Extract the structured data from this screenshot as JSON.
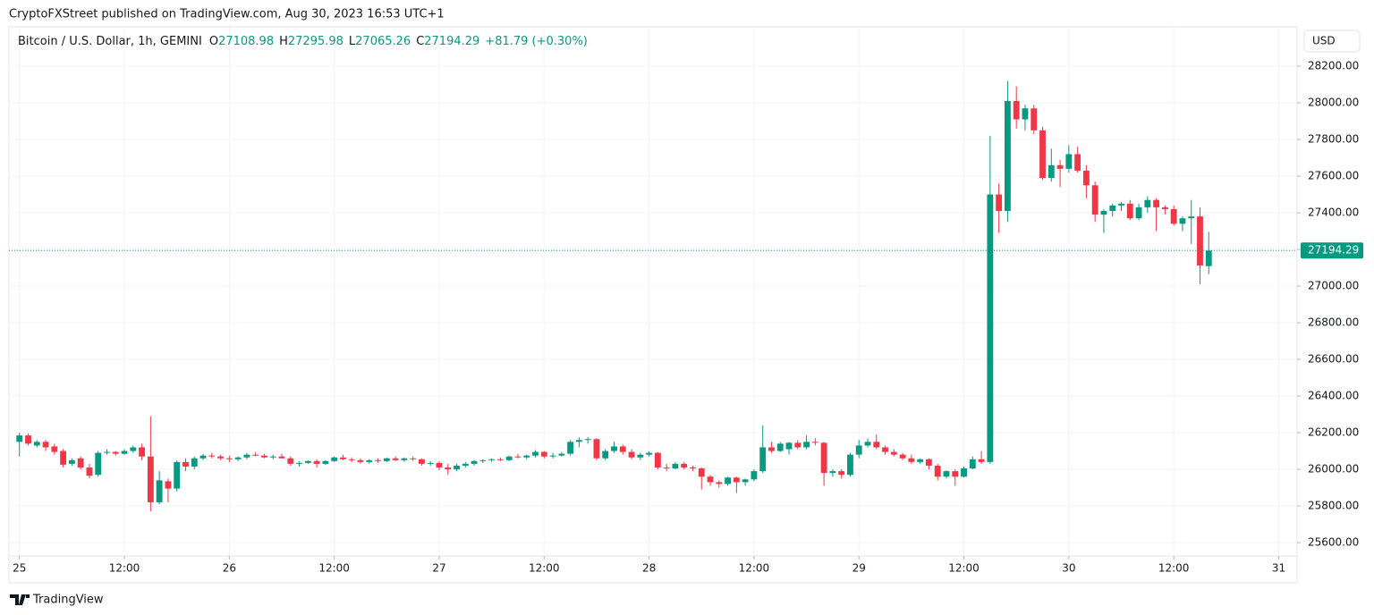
{
  "chart_data": {
    "type": "candlestick",
    "header": "CryptoFXStreet published on TradingView.com, Aug 30, 2023 16:53 UTC+1",
    "title": "Bitcoin / U.S. Dollar, 1h, GEMINI",
    "ohlc_labels": [
      "O",
      "H",
      "L",
      "C"
    ],
    "change": "+81.79 (+0.30%)",
    "currency": "USD",
    "brand": "TradingView",
    "up_color": "#089981",
    "down_color": "#f23645",
    "grid": true,
    "x": [
      0,
      1,
      2,
      3,
      4,
      5,
      6,
      7,
      8,
      9,
      10,
      11,
      12,
      13,
      14,
      15,
      16,
      17,
      18,
      19,
      20,
      21,
      22,
      23,
      24,
      25,
      26,
      27,
      28,
      29,
      30,
      31,
      32,
      33,
      34,
      35,
      36,
      37,
      38,
      39,
      40,
      41,
      42,
      43,
      44,
      45,
      46,
      47,
      48,
      49,
      50,
      51,
      52,
      53,
      54,
      55,
      56,
      57,
      58,
      59,
      60,
      61,
      62,
      63,
      64,
      65,
      66,
      67,
      68,
      69,
      70,
      71,
      72,
      73,
      74,
      75,
      76,
      77,
      78,
      79,
      80,
      81,
      82,
      83,
      84,
      85,
      86,
      87,
      88,
      89,
      90,
      91,
      92,
      93,
      94,
      95,
      96,
      97,
      98,
      99,
      100,
      101,
      102,
      103,
      104,
      105,
      106,
      107,
      108,
      109,
      110,
      111,
      112,
      113,
      114,
      115,
      116,
      117,
      118,
      119,
      120,
      121,
      122,
      123,
      124,
      125,
      126,
      127,
      128,
      129,
      130,
      131,
      132,
      133,
      134,
      135,
      136
    ],
    "open": [
      26150,
      26185,
      26130,
      26150,
      26125,
      26100,
      26030,
      26060,
      26010,
      25970,
      26090,
      26095,
      26085,
      26100,
      26120,
      26070,
      25820,
      25935,
      25895,
      26040,
      26015,
      26060,
      26075,
      26070,
      26060,
      26055,
      26065,
      26080,
      26075,
      26065,
      26070,
      26060,
      26030,
      26035,
      26045,
      26030,
      26045,
      26065,
      26055,
      26050,
      26040,
      26050,
      26045,
      26060,
      26050,
      26060,
      26055,
      26030,
      26035,
      26010,
      26000,
      26020,
      26030,
      26045,
      26050,
      26055,
      26050,
      26070,
      26065,
      26075,
      26095,
      26070,
      26075,
      26085,
      26150,
      26160,
      26165,
      26060,
      26100,
      26125,
      26095,
      26065,
      26080,
      26090,
      26010,
      26005,
      26030,
      26010,
      26005,
      25960,
      25930,
      25920,
      25955,
      25930,
      25945,
      25990,
      26120,
      26100,
      26110,
      26145,
      26120,
      26150,
      26145,
      25980,
      25990,
      25970,
      26080,
      26130,
      26150,
      26120,
      26095,
      26080,
      26060,
      26040,
      26055,
      26020,
      25960,
      25990,
      25960,
      26005,
      26055,
      26040,
      27500,
      27410,
      28010,
      27910,
      27970,
      27850,
      27590,
      27660,
      27640,
      27720,
      27630,
      27550,
      27390,
      27410,
      27440,
      27450,
      27370,
      27430,
      27470,
      27430,
      27420,
      27340,
      27370,
      27380,
      27108.98
    ],
    "high": [
      26200,
      26195,
      26160,
      26160,
      26140,
      26110,
      26060,
      26070,
      26030,
      26100,
      26110,
      26100,
      26110,
      26130,
      26140,
      26290,
      25990,
      25950,
      26050,
      26060,
      26070,
      26085,
      26090,
      26080,
      26075,
      26070,
      26090,
      26095,
      26085,
      26080,
      26085,
      26070,
      26045,
      26050,
      26055,
      26050,
      26070,
      26080,
      26065,
      26060,
      26055,
      26060,
      26065,
      26070,
      26065,
      26070,
      26060,
      26045,
      26045,
      26030,
      26030,
      26040,
      26050,
      26055,
      26060,
      26065,
      26075,
      26085,
      26080,
      26105,
      26100,
      26090,
      26095,
      26160,
      26175,
      26175,
      26170,
      26110,
      26150,
      26135,
      26110,
      26090,
      26100,
      26095,
      26030,
      26040,
      26040,
      26020,
      26010,
      25970,
      25940,
      25960,
      25960,
      25950,
      26000,
      26240,
      26150,
      26150,
      26150,
      26160,
      26185,
      26170,
      26150,
      26000,
      26000,
      26090,
      26160,
      26170,
      26190,
      26130,
      26110,
      26090,
      26080,
      26060,
      26060,
      26030,
      25995,
      26000,
      26015,
      26070,
      26100,
      27820,
      27560,
      28120,
      28090,
      27990,
      27990,
      27870,
      27750,
      27690,
      27770,
      27760,
      27660,
      27570,
      27420,
      27450,
      27460,
      27470,
      27450,
      27490,
      27480,
      27440,
      27440,
      27380,
      27470,
      27430,
      27295.98
    ],
    "low": [
      26070,
      26130,
      26120,
      26100,
      26080,
      26010,
      26020,
      26000,
      25950,
      25960,
      26080,
      26075,
      26080,
      26090,
      26050,
      25770,
      25810,
      25820,
      25880,
      25990,
      26000,
      26050,
      26060,
      26050,
      26040,
      26045,
      26055,
      26070,
      26060,
      26055,
      26060,
      26020,
      26015,
      26030,
      26010,
      26025,
      26040,
      26050,
      26040,
      26030,
      26030,
      26035,
      26040,
      26045,
      26040,
      26045,
      26020,
      26020,
      25995,
      25970,
      25990,
      26010,
      26020,
      26035,
      26040,
      26045,
      26045,
      26060,
      26055,
      26065,
      26060,
      26060,
      26070,
      26075,
      26120,
      26140,
      26050,
      26050,
      26090,
      26080,
      26055,
      26050,
      26070,
      26000,
      25990,
      26000,
      26000,
      25990,
      25890,
      25910,
      25900,
      25910,
      25870,
      25910,
      25935,
      25980,
      26090,
      26095,
      26080,
      26110,
      26110,
      26130,
      25910,
      25960,
      25950,
      25960,
      26060,
      26120,
      26110,
      26080,
      26070,
      26050,
      26030,
      26030,
      26000,
      25940,
      25950,
      25910,
      25955,
      26000,
      26030,
      26030,
      27290,
      27350,
      27860,
      27850,
      27830,
      27580,
      27570,
      27540,
      27620,
      27620,
      27480,
      27350,
      27290,
      27380,
      27410,
      27360,
      27360,
      27400,
      27300,
      27390,
      27330,
      27300,
      27230,
      27010,
      27065.26
    ],
    "close": [
      26185,
      26140,
      26150,
      26120,
      26095,
      26025,
      26050,
      26010,
      25965,
      26090,
      26095,
      26085,
      26100,
      26120,
      26070,
      25820,
      25940,
      25895,
      26040,
      26015,
      26060,
      26075,
      26070,
      26060,
      26055,
      26065,
      26080,
      26075,
      26065,
      26070,
      26060,
      26030,
      26035,
      26045,
      26030,
      26045,
      26065,
      26055,
      26050,
      26040,
      26050,
      26045,
      26060,
      26050,
      26060,
      26055,
      26030,
      26035,
      26010,
      26000,
      26020,
      26030,
      26045,
      26050,
      26055,
      26050,
      26070,
      26065,
      26075,
      26095,
      26070,
      26075,
      26085,
      26150,
      26160,
      26165,
      26060,
      26100,
      26125,
      26095,
      26065,
      26080,
      26090,
      26010,
      26005,
      26030,
      26010,
      26005,
      25960,
      25930,
      25920,
      25955,
      25930,
      25945,
      25990,
      26120,
      26100,
      26140,
      26145,
      26120,
      26150,
      26145,
      25980,
      25990,
      25970,
      26080,
      26130,
      26150,
      26120,
      26095,
      26080,
      26060,
      26040,
      26055,
      26020,
      25960,
      25990,
      25960,
      26005,
      26055,
      26040,
      27500,
      27410,
      28010,
      27910,
      27970,
      27850,
      27590,
      27660,
      27640,
      27720,
      27630,
      27550,
      27390,
      27410,
      27440,
      27450,
      27370,
      27430,
      27470,
      27430,
      27420,
      27340,
      27370,
      27380,
      27112.5,
      27194.29
    ],
    "xlim": [
      -1.2,
      146.1
    ],
    "xticks": [
      {
        "value": 0,
        "label": "25"
      },
      {
        "value": 12,
        "label": "12:00"
      },
      {
        "value": 24,
        "label": "26"
      },
      {
        "value": 36,
        "label": "12:00"
      },
      {
        "value": 48,
        "label": "27"
      },
      {
        "value": 60,
        "label": "12:00"
      },
      {
        "value": 72,
        "label": "28"
      },
      {
        "value": 84,
        "label": "12:00"
      },
      {
        "value": 96,
        "label": "29"
      },
      {
        "value": 108,
        "label": "12:00"
      },
      {
        "value": 120,
        "label": "30"
      },
      {
        "value": 132,
        "label": "12:00"
      },
      {
        "value": 144,
        "label": "31"
      }
    ],
    "ylim": [
      25527,
      28415
    ],
    "yticks": [
      {
        "value": 25600,
        "label": "25600.00"
      },
      {
        "value": 25800,
        "label": "25800.00"
      },
      {
        "value": 26000,
        "label": "26000.00"
      },
      {
        "value": 26200,
        "label": "26200.00"
      },
      {
        "value": 26400,
        "label": "26400.00"
      },
      {
        "value": 26600,
        "label": "26600.00"
      },
      {
        "value": 26800,
        "label": "26800.00"
      },
      {
        "value": 27000,
        "label": "27000.00"
      },
      {
        "value": 27200,
        "label": "27200.00"
      },
      {
        "value": 27400,
        "label": "27400.00"
      },
      {
        "value": 27600,
        "label": "27600.00"
      },
      {
        "value": 27800,
        "label": "27800.00"
      },
      {
        "value": 28000,
        "label": "28000.00"
      },
      {
        "value": 28200,
        "label": "28200.00"
      }
    ]
  }
}
